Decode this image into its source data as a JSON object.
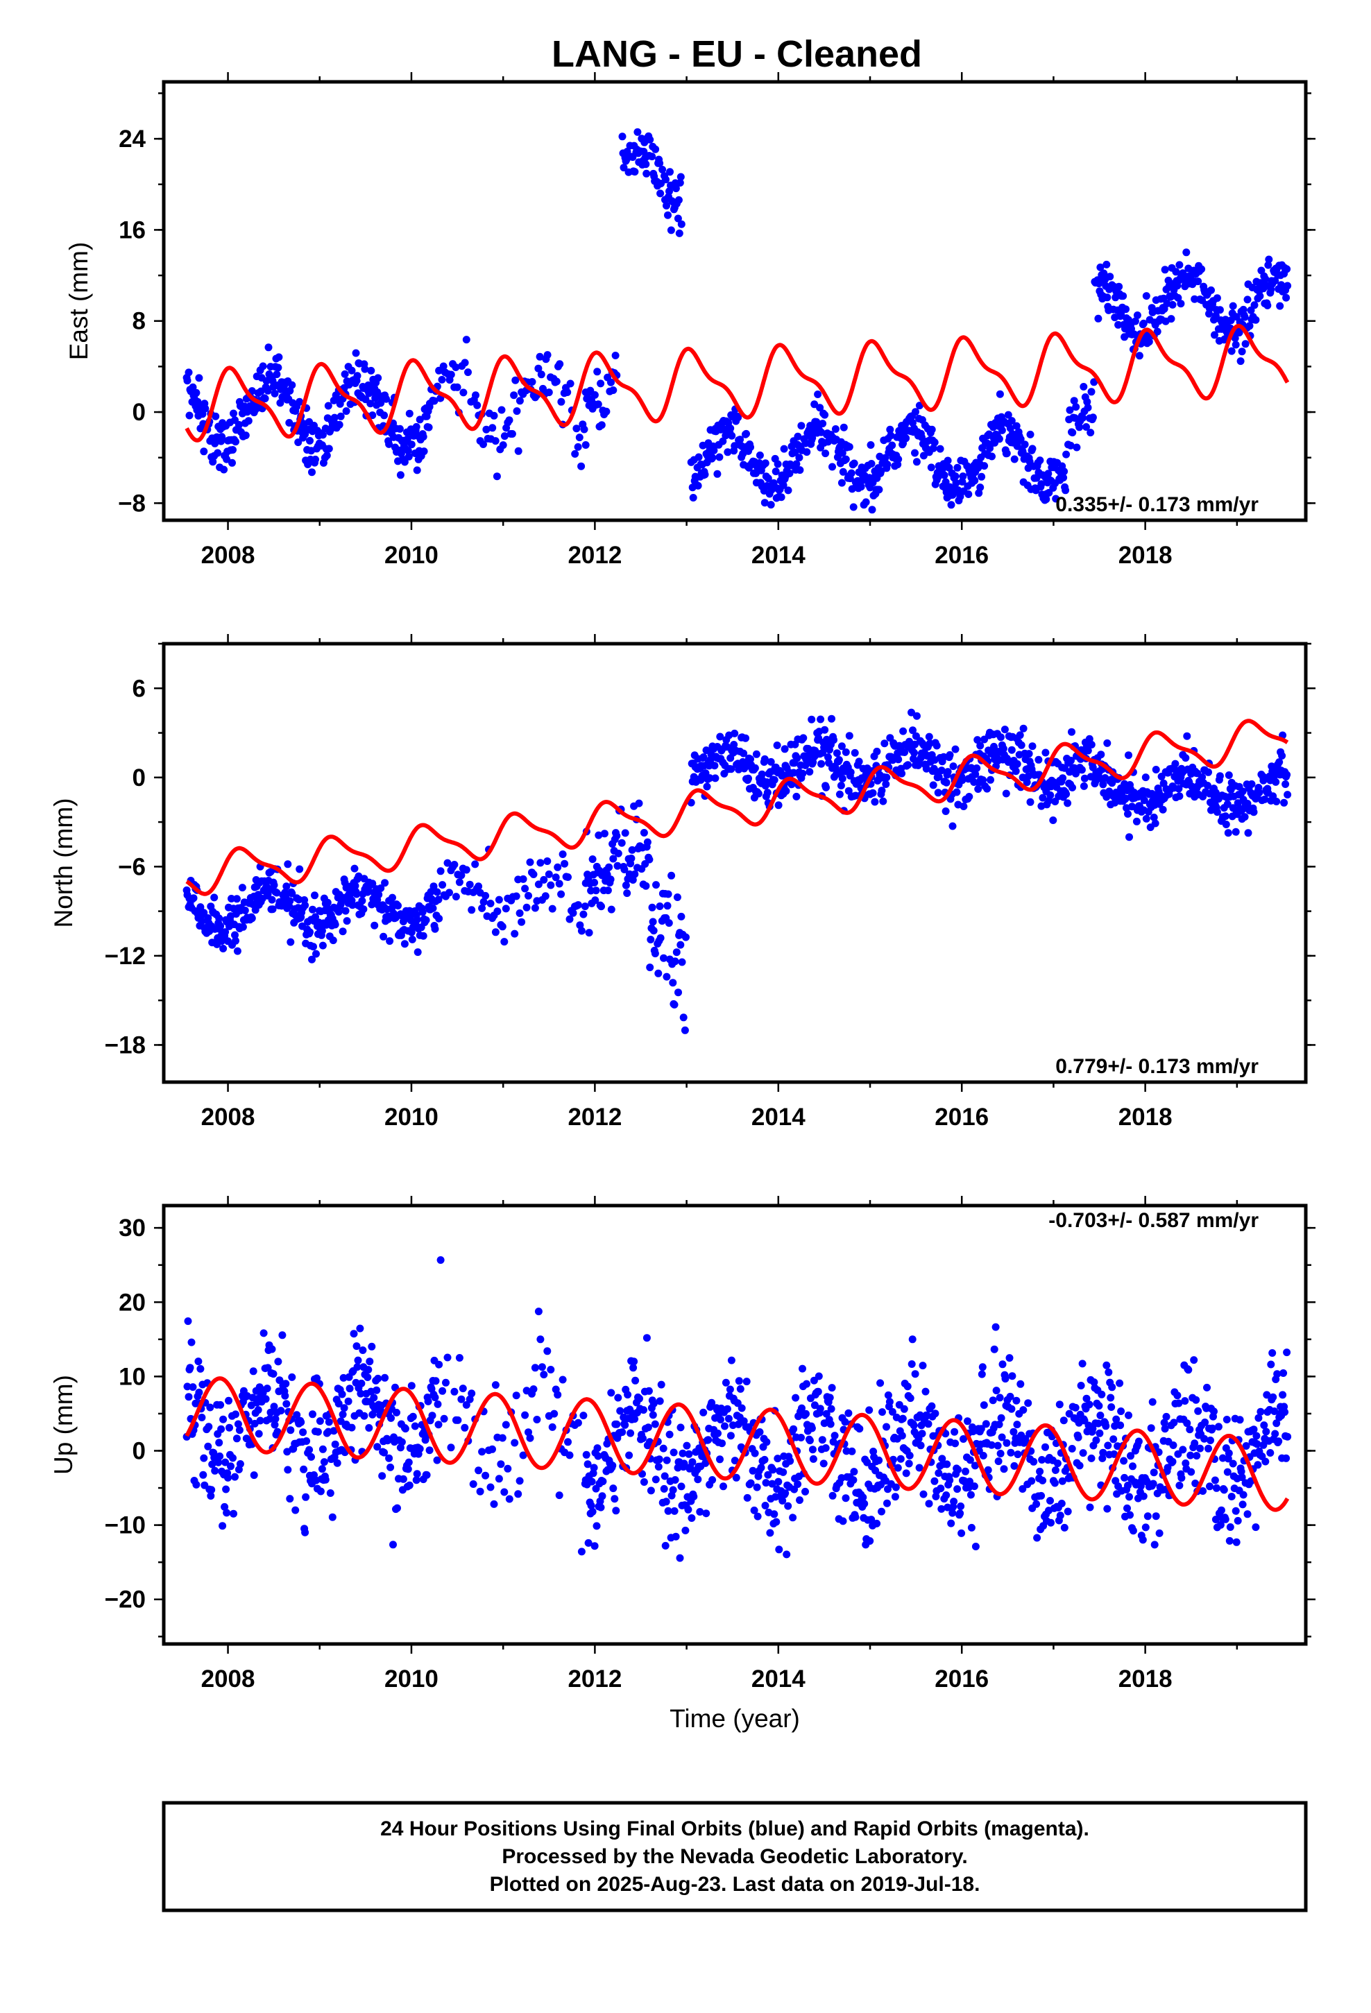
{
  "title": "LANG  - EU - Cleaned",
  "xlabel": "Time (year)",
  "footer": {
    "line1": "24 Hour Positions Using Final Orbits (blue) and Rapid Orbits (magenta).",
    "line2": "Processed by the Nevada Geodetic Laboratory.",
    "line3": "Plotted on 2025-Aug-23. Last data on 2019-Jul-18."
  },
  "colors": {
    "data": "#0000ff",
    "model": "#ff0000",
    "frame": "#000000"
  },
  "chart_data": [
    {
      "type": "scatter",
      "panel": "east",
      "ylabel": "East (mm)",
      "rate_label": "0.335+/- 0.173 mm/yr",
      "rate_position": "bottom-right",
      "xlim": [
        2007.3,
        2019.75
      ],
      "ylim": [
        -9.5,
        29
      ],
      "xticks": [
        2008,
        2010,
        2012,
        2014,
        2016,
        2018
      ],
      "yticks": [
        -8,
        0,
        8,
        16,
        24
      ],
      "grid": false,
      "segments": [
        {
          "x0": 2007.55,
          "x1": 2010.2,
          "offset": 0.0,
          "amp": 3.0,
          "noise": 1.2,
          "density": 1.0
        },
        {
          "x0": 2010.2,
          "x1": 2011.9,
          "offset": 0.8,
          "amp": 3.0,
          "noise": 1.4,
          "density": 0.45
        },
        {
          "x0": 2011.9,
          "x1": 2012.25,
          "offset": 2.5,
          "amp": 1.5,
          "noise": 1.2,
          "density": 0.6
        },
        {
          "x0": 2012.3,
          "x1": 2012.95,
          "offset": 20.5,
          "amp": 2.5,
          "noise": 1.2,
          "density": 1.0
        },
        {
          "x0": 2013.05,
          "x1": 2017.15,
          "offset": -4.0,
          "amp": 2.5,
          "noise": 1.1,
          "density": 1.0
        },
        {
          "x0": 2017.15,
          "x1": 2017.45,
          "offset": -1.0,
          "amp": 1.5,
          "noise": 1.2,
          "density": 0.8
        },
        {
          "x0": 2017.45,
          "x1": 2019.55,
          "offset": 9.5,
          "amp": 2.5,
          "noise": 1.1,
          "density": 1.0
        }
      ],
      "model": {
        "x0": 2007.55,
        "x1": 2019.55,
        "base": 0.6,
        "slope": 0.335,
        "annual_amp": 2.6,
        "semiannual_amp": 1.0,
        "phase": 1.0
      }
    },
    {
      "type": "scatter",
      "panel": "north",
      "ylabel": "North (mm)",
      "rate_label": "0.779+/- 0.173 mm/yr",
      "rate_position": "bottom-right",
      "xlim": [
        2007.3,
        2019.75
      ],
      "ylim": [
        -20.5,
        9
      ],
      "xticks": [
        2008,
        2010,
        2012,
        2014,
        2016,
        2018
      ],
      "yticks": [
        -18,
        -12,
        -6,
        0,
        6
      ],
      "grid": false,
      "segments": [
        {
          "x0": 2007.55,
          "x1": 2010.3,
          "offset": -8.8,
          "amp": 1.2,
          "noise": 0.9,
          "density": 1.0
        },
        {
          "x0": 2010.3,
          "x1": 2011.9,
          "offset": -8.0,
          "amp": 1.0,
          "noise": 1.1,
          "density": 0.4
        },
        {
          "x0": 2011.9,
          "x1": 2012.6,
          "offset": -6.0,
          "amp": 1.0,
          "noise": 1.4,
          "density": 0.8
        },
        {
          "x0": 2012.6,
          "x1": 2013.0,
          "offset": -10.5,
          "amp": 1.5,
          "noise": 2.3,
          "density": 0.9
        },
        {
          "x0": 2013.05,
          "x1": 2017.45,
          "offset": 0.8,
          "amp": 1.0,
          "noise": 1.0,
          "density": 1.0
        },
        {
          "x0": 2017.45,
          "x1": 2019.55,
          "offset": -0.8,
          "amp": 1.0,
          "noise": 0.9,
          "density": 1.0
        }
      ],
      "model": {
        "x0": 2007.55,
        "x1": 2019.55,
        "base": -6.6,
        "slope": 0.779,
        "annual_amp": 1.2,
        "semiannual_amp": 0.4,
        "phase": 0.4
      }
    },
    {
      "type": "scatter",
      "panel": "up",
      "ylabel": "Up (mm)",
      "rate_label": "-0.703+/- 0.587 mm/yr",
      "rate_position": "top-right",
      "xlim": [
        2007.3,
        2019.75
      ],
      "ylim": [
        -26,
        33
      ],
      "xticks": [
        2008,
        2010,
        2012,
        2014,
        2016,
        2018
      ],
      "yticks": [
        -20,
        -10,
        0,
        10,
        20,
        30
      ],
      "grid": false,
      "segments": [
        {
          "x0": 2007.55,
          "x1": 2010.3,
          "offset": 3.0,
          "amp": 5.0,
          "noise": 4.2,
          "density": 1.0
        },
        {
          "x0": 2010.3,
          "x1": 2011.9,
          "offset": 3.0,
          "amp": 5.0,
          "noise": 4.5,
          "density": 0.4
        },
        {
          "x0": 2011.9,
          "x1": 2019.55,
          "offset": 0.0,
          "amp": 5.0,
          "noise": 4.2,
          "density": 1.0
        }
      ],
      "model": {
        "x0": 2007.55,
        "x1": 2019.55,
        "base": 5.2,
        "slope": -0.703,
        "annual_amp": 4.8,
        "semiannual_amp": 0.0,
        "phase": 2.1
      }
    }
  ]
}
